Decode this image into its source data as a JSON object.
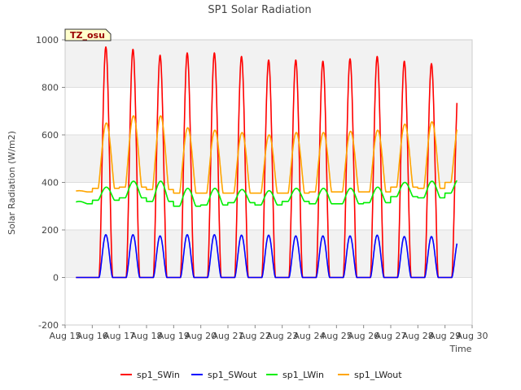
{
  "chart_data": {
    "type": "line",
    "title": "SP1 Solar Radiation",
    "xlabel": "Time",
    "ylabel": "Solar Radiation (W/m2)",
    "badge": "TZ_osu",
    "ylim": [
      -200,
      1000
    ],
    "xlim": [
      15,
      30
    ],
    "y_ticks": [
      -200,
      0,
      200,
      400,
      600,
      800,
      1000
    ],
    "x_tick_labels": [
      "Aug 15",
      "Aug 16",
      "Aug 17",
      "Aug 18",
      "Aug 19",
      "Aug 20",
      "Aug 21",
      "Aug 22",
      "Aug 23",
      "Aug 24",
      "Aug 25",
      "Aug 26",
      "Aug 27",
      "Aug 28",
      "Aug 29",
      "Aug 30"
    ],
    "grid": true,
    "legend_placement": "bottom-center",
    "days": [
      15,
      16,
      17,
      18,
      19,
      20,
      21,
      22,
      23,
      24,
      25,
      26,
      27,
      28,
      29
    ],
    "series": [
      {
        "name": "sp1_SWin",
        "color": "#ff0000",
        "daily_peak": [
          0,
          970,
          960,
          935,
          945,
          945,
          930,
          915,
          915,
          910,
          920,
          930,
          910,
          900,
          825
        ]
      },
      {
        "name": "sp1_SWout",
        "color": "#0000ff",
        "daily_peak": [
          0,
          180,
          180,
          175,
          180,
          180,
          178,
          178,
          175,
          175,
          175,
          178,
          172,
          172,
          160
        ]
      },
      {
        "name": "sp1_LWin",
        "color": "#00ee00",
        "daily_min": [
          310,
          325,
          335,
          320,
          300,
          305,
          315,
          305,
          320,
          310,
          310,
          315,
          340,
          335,
          355
        ],
        "daily_max": [
          320,
          380,
          405,
          405,
          375,
          375,
          370,
          365,
          375,
          375,
          375,
          380,
          400,
          405,
          415
        ]
      },
      {
        "name": "sp1_LWout",
        "color": "#ffa500",
        "daily_min": [
          360,
          375,
          380,
          370,
          355,
          355,
          355,
          355,
          355,
          360,
          360,
          360,
          380,
          375,
          400
        ],
        "daily_max": [
          365,
          650,
          680,
          680,
          630,
          620,
          610,
          600,
          610,
          610,
          615,
          620,
          645,
          655,
          650
        ]
      }
    ]
  }
}
